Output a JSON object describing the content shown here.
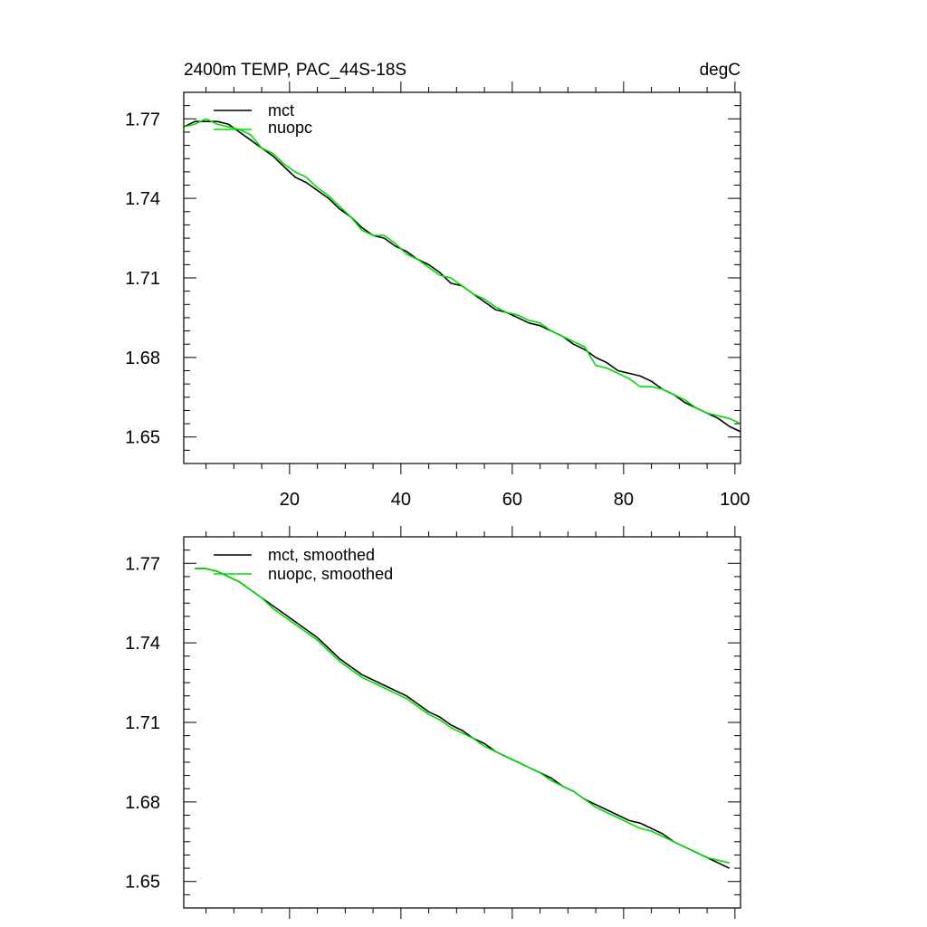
{
  "chart_data": [
    {
      "type": "line",
      "title": "2400m TEMP, PAC_44S-18S",
      "units": "degC",
      "xlabel": "",
      "ylabel": "",
      "xlim": [
        1,
        101
      ],
      "ylim": [
        1.64,
        1.78
      ],
      "x_ticks": [
        20,
        40,
        60,
        80,
        100
      ],
      "y_ticks": [
        1.65,
        1.68,
        1.71,
        1.74,
        1.77
      ],
      "x_tick_labels": [
        "20",
        "40",
        "60",
        "80",
        "100"
      ],
      "y_tick_labels": [
        "1.65",
        "1.68",
        "1.71",
        "1.74",
        "1.77"
      ],
      "legend_position": "top-left",
      "series": [
        {
          "name": "mct",
          "color": "#000000",
          "x": [
            1,
            3,
            5,
            7,
            9,
            11,
            13,
            15,
            17,
            19,
            21,
            23,
            25,
            27,
            29,
            31,
            33,
            35,
            37,
            39,
            41,
            43,
            45,
            47,
            49,
            51,
            53,
            55,
            57,
            59,
            61,
            63,
            65,
            67,
            69,
            71,
            73,
            75,
            77,
            79,
            81,
            83,
            85,
            87,
            89,
            91,
            93,
            95,
            97,
            99,
            101
          ],
          "y": [
            1.767,
            1.769,
            1.769,
            1.769,
            1.768,
            1.765,
            1.762,
            1.759,
            1.756,
            1.752,
            1.748,
            1.746,
            1.743,
            1.74,
            1.736,
            1.733,
            1.729,
            1.726,
            1.725,
            1.722,
            1.72,
            1.717,
            1.715,
            1.712,
            1.708,
            1.707,
            1.704,
            1.701,
            1.698,
            1.697,
            1.695,
            1.693,
            1.692,
            1.69,
            1.688,
            1.685,
            1.683,
            1.68,
            1.678,
            1.675,
            1.674,
            1.673,
            1.671,
            1.668,
            1.666,
            1.663,
            1.661,
            1.659,
            1.657,
            1.654,
            1.652
          ]
        },
        {
          "name": "nuopc",
          "color": "#00dd00",
          "x": [
            1,
            3,
            5,
            7,
            9,
            11,
            13,
            15,
            17,
            19,
            21,
            23,
            25,
            27,
            29,
            31,
            33,
            35,
            37,
            39,
            41,
            43,
            45,
            47,
            49,
            51,
            53,
            55,
            57,
            59,
            61,
            63,
            65,
            67,
            69,
            71,
            73,
            75,
            77,
            79,
            81,
            83,
            85,
            87,
            89,
            91,
            93,
            95,
            97,
            99,
            101
          ],
          "y": [
            1.767,
            1.768,
            1.77,
            1.768,
            1.767,
            1.766,
            1.764,
            1.759,
            1.757,
            1.753,
            1.75,
            1.748,
            1.744,
            1.741,
            1.737,
            1.733,
            1.728,
            1.726,
            1.726,
            1.723,
            1.719,
            1.717,
            1.714,
            1.711,
            1.71,
            1.707,
            1.704,
            1.702,
            1.699,
            1.697,
            1.696,
            1.694,
            1.693,
            1.69,
            1.688,
            1.686,
            1.684,
            1.677,
            1.676,
            1.674,
            1.672,
            1.669,
            1.669,
            1.668,
            1.666,
            1.664,
            1.661,
            1.659,
            1.658,
            1.657,
            1.655
          ]
        }
      ]
    },
    {
      "type": "line",
      "title": "",
      "xlabel": "",
      "ylabel": "",
      "xlim": [
        1,
        101
      ],
      "ylim": [
        1.64,
        1.78
      ],
      "x_ticks": [
        20,
        40,
        60,
        80,
        100
      ],
      "y_ticks": [
        1.65,
        1.68,
        1.71,
        1.74,
        1.77
      ],
      "y_tick_labels": [
        "1.65",
        "1.68",
        "1.71",
        "1.74",
        "1.77"
      ],
      "legend_position": "top-left",
      "series": [
        {
          "name": "mct, smoothed",
          "color": "#000000",
          "x": [
            3,
            5,
            7,
            9,
            11,
            13,
            15,
            17,
            19,
            21,
            23,
            25,
            27,
            29,
            31,
            33,
            35,
            37,
            39,
            41,
            43,
            45,
            47,
            49,
            51,
            53,
            55,
            57,
            59,
            61,
            63,
            65,
            67,
            69,
            71,
            73,
            75,
            77,
            79,
            81,
            83,
            85,
            87,
            89,
            91,
            93,
            95,
            97,
            99
          ],
          "y": [
            1.768,
            1.768,
            1.767,
            1.765,
            1.763,
            1.76,
            1.757,
            1.754,
            1.751,
            1.748,
            1.745,
            1.742,
            1.738,
            1.734,
            1.731,
            1.728,
            1.726,
            1.724,
            1.722,
            1.72,
            1.717,
            1.714,
            1.712,
            1.709,
            1.707,
            1.704,
            1.702,
            1.699,
            1.697,
            1.695,
            1.693,
            1.691,
            1.689,
            1.686,
            1.684,
            1.681,
            1.679,
            1.677,
            1.675,
            1.673,
            1.672,
            1.67,
            1.668,
            1.665,
            1.663,
            1.661,
            1.659,
            1.657,
            1.655
          ]
        },
        {
          "name": "nuopc, smoothed",
          "color": "#00dd00",
          "x": [
            3,
            5,
            7,
            9,
            11,
            13,
            15,
            17,
            19,
            21,
            23,
            25,
            27,
            29,
            31,
            33,
            35,
            37,
            39,
            41,
            43,
            45,
            47,
            49,
            51,
            53,
            55,
            57,
            59,
            61,
            63,
            65,
            67,
            69,
            71,
            73,
            75,
            77,
            79,
            81,
            83,
            85,
            87,
            89,
            91,
            93,
            95,
            97,
            99
          ],
          "y": [
            1.768,
            1.768,
            1.767,
            1.765,
            1.763,
            1.76,
            1.757,
            1.753,
            1.75,
            1.747,
            1.744,
            1.741,
            1.737,
            1.733,
            1.73,
            1.727,
            1.725,
            1.723,
            1.721,
            1.719,
            1.716,
            1.713,
            1.711,
            1.708,
            1.706,
            1.704,
            1.701,
            1.699,
            1.697,
            1.695,
            1.693,
            1.691,
            1.688,
            1.686,
            1.684,
            1.681,
            1.678,
            1.676,
            1.674,
            1.672,
            1.67,
            1.669,
            1.667,
            1.665,
            1.663,
            1.661,
            1.659,
            1.658,
            1.657
          ]
        }
      ]
    }
  ]
}
